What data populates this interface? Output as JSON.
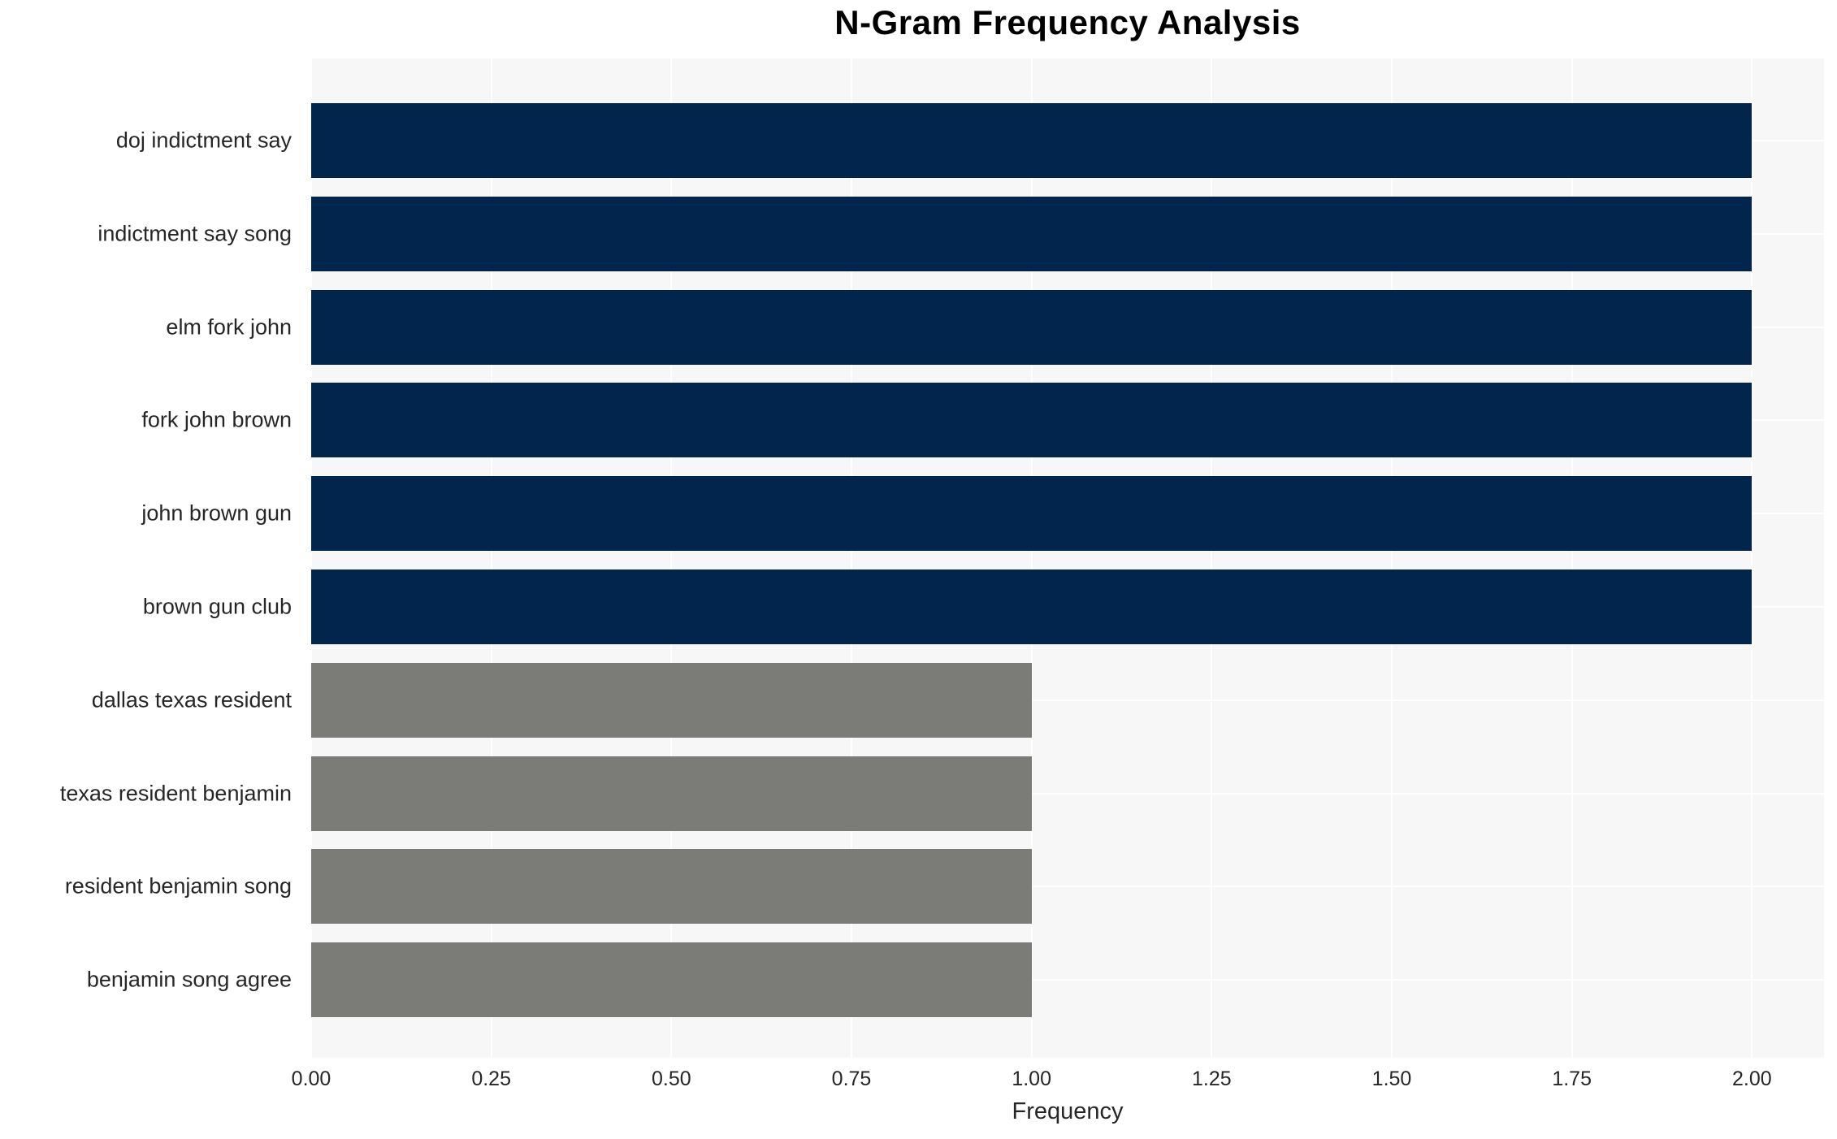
{
  "chart_data": {
    "type": "bar",
    "orientation": "horizontal",
    "title": "N-Gram Frequency Analysis",
    "xlabel": "Frequency",
    "ylabel": "",
    "categories": [
      "doj indictment say",
      "indictment say song",
      "elm fork john",
      "fork john brown",
      "john brown gun",
      "brown gun club",
      "dallas texas resident",
      "texas resident benjamin",
      "resident benjamin song",
      "benjamin song agree"
    ],
    "values": [
      2.0,
      2.0,
      2.0,
      2.0,
      2.0,
      2.0,
      1.0,
      1.0,
      1.0,
      1.0
    ],
    "bar_colors": [
      "#02254e",
      "#02254e",
      "#02254e",
      "#02254e",
      "#02254e",
      "#02254e",
      "#7b7b78",
      "#7b7b78",
      "#7b7b78",
      "#7b7b78"
    ],
    "xlim": [
      0,
      2.1
    ],
    "xticks": {
      "values": [
        0,
        0.25,
        0.5,
        0.75,
        1.0,
        1.25,
        1.5,
        1.75,
        2.0
      ],
      "labels": [
        "0.00",
        "0.25",
        "0.50",
        "0.75",
        "1.00",
        "1.25",
        "1.50",
        "1.75",
        "2.00"
      ]
    },
    "grid": true,
    "legend": null,
    "colors": {
      "bar_high": "#02254e",
      "bar_low": "#7b7b78",
      "plot_background": "#f7f7f7",
      "figure_background": "#ffffff",
      "grid": "#ffffff",
      "text": "#262626",
      "title": "#000000"
    }
  }
}
